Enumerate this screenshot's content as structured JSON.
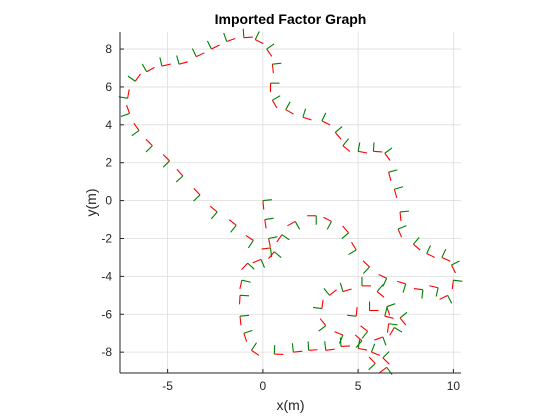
{
  "chart_data": {
    "type": "line",
    "title": "Imported Factor Graph",
    "xlabel": "x(m)",
    "ylabel": "y(m)",
    "xlim": [
      -7.5,
      10.4
    ],
    "ylim": [
      -9.1,
      8.9
    ],
    "xticks": [
      -5,
      0,
      5,
      10
    ],
    "yticks": [
      -8,
      -6,
      -4,
      -2,
      0,
      2,
      4,
      6,
      8
    ],
    "grid": true,
    "colors": {
      "x_axis_marker": "#ff0000",
      "y_axis_marker": "#008000",
      "grid": "#dcdcdc",
      "axis": "#262626"
    },
    "series": [
      {
        "values": [
          [
            0.0,
            0.0
          ],
          [
            0.1,
            -1.0
          ],
          [
            0.3,
            -2.0
          ],
          [
            0.4,
            -2.5
          ],
          [
            -0.5,
            -2.1
          ],
          [
            -1.4,
            -1.3
          ],
          [
            -2.4,
            -0.6
          ],
          [
            -3.3,
            0.3
          ],
          [
            -4.2,
            1.3
          ],
          [
            -4.9,
            2.1
          ],
          [
            -5.8,
            2.9
          ],
          [
            -6.5,
            3.7
          ],
          [
            -7.0,
            4.6
          ],
          [
            -7.1,
            5.4
          ],
          [
            -6.7,
            6.3
          ],
          [
            -6.1,
            6.8
          ],
          [
            -5.3,
            7.1
          ],
          [
            -4.4,
            7.2
          ],
          [
            -3.5,
            7.6
          ],
          [
            -2.7,
            8.0
          ],
          [
            -1.9,
            8.4
          ],
          [
            -1.0,
            8.6
          ],
          [
            -0.4,
            8.5
          ],
          [
            0.2,
            8.0
          ],
          [
            0.5,
            7.2
          ],
          [
            0.4,
            6.2
          ],
          [
            0.5,
            5.3
          ],
          [
            1.2,
            4.8
          ],
          [
            2.1,
            4.4
          ],
          [
            3.1,
            4.2
          ],
          [
            3.8,
            3.6
          ],
          [
            4.2,
            2.9
          ],
          [
            5.0,
            2.6
          ],
          [
            5.8,
            2.6
          ],
          [
            6.4,
            2.5
          ],
          [
            6.6,
            1.5
          ],
          [
            6.9,
            0.6
          ],
          [
            7.2,
            -0.6
          ],
          [
            7.1,
            -1.5
          ],
          [
            7.9,
            -2.3
          ],
          [
            8.6,
            -2.8
          ],
          [
            9.4,
            -3.0
          ],
          [
            9.9,
            -3.4
          ],
          [
            10.0,
            -4.2
          ],
          [
            9.7,
            -5.0
          ],
          [
            9.2,
            -4.6
          ],
          [
            8.4,
            -4.7
          ],
          [
            7.5,
            -4.4
          ],
          [
            6.5,
            -4.1
          ],
          [
            5.6,
            -3.5
          ],
          [
            4.9,
            -2.6
          ],
          [
            4.5,
            -1.7
          ],
          [
            3.6,
            -1.1
          ],
          [
            2.8,
            -0.8
          ],
          [
            1.7,
            -1.1
          ],
          [
            1.0,
            -1.8
          ],
          [
            0.6,
            -2.7
          ],
          [
            -0.1,
            -3.1
          ],
          [
            -0.8,
            -3.3
          ],
          [
            -1.1,
            -4.2
          ],
          [
            -1.2,
            -5.0
          ],
          [
            -1.2,
            -6.1
          ],
          [
            -1.0,
            -7.0
          ],
          [
            -0.6,
            -7.9
          ],
          [
            0.6,
            -8.1
          ],
          [
            1.6,
            -8.0
          ],
          [
            2.4,
            -7.9
          ],
          [
            3.3,
            -7.9
          ],
          [
            4.1,
            -7.7
          ],
          [
            5.0,
            -7.8
          ],
          [
            5.7,
            -8.0
          ],
          [
            6.3,
            -8.3
          ],
          [
            6.5,
            -8.8
          ],
          [
            5.9,
            -8.6
          ],
          [
            5.2,
            -7.4
          ],
          [
            4.2,
            -7.1
          ],
          [
            3.3,
            -6.6
          ],
          [
            3.1,
            -5.7
          ],
          [
            3.5,
            -5.0
          ],
          [
            4.2,
            -4.8
          ],
          [
            5.2,
            -4.5
          ],
          [
            6.0,
            -4.8
          ],
          [
            6.5,
            -5.6
          ],
          [
            6.6,
            -6.5
          ],
          [
            6.3,
            -7.2
          ],
          [
            5.5,
            -6.9
          ],
          [
            4.9,
            -6.1
          ],
          [
            5.6,
            -5.8
          ],
          [
            6.4,
            -6.1
          ],
          [
            7.2,
            -6.2
          ],
          [
            6.9,
            -6.7
          ]
        ]
      }
    ]
  }
}
